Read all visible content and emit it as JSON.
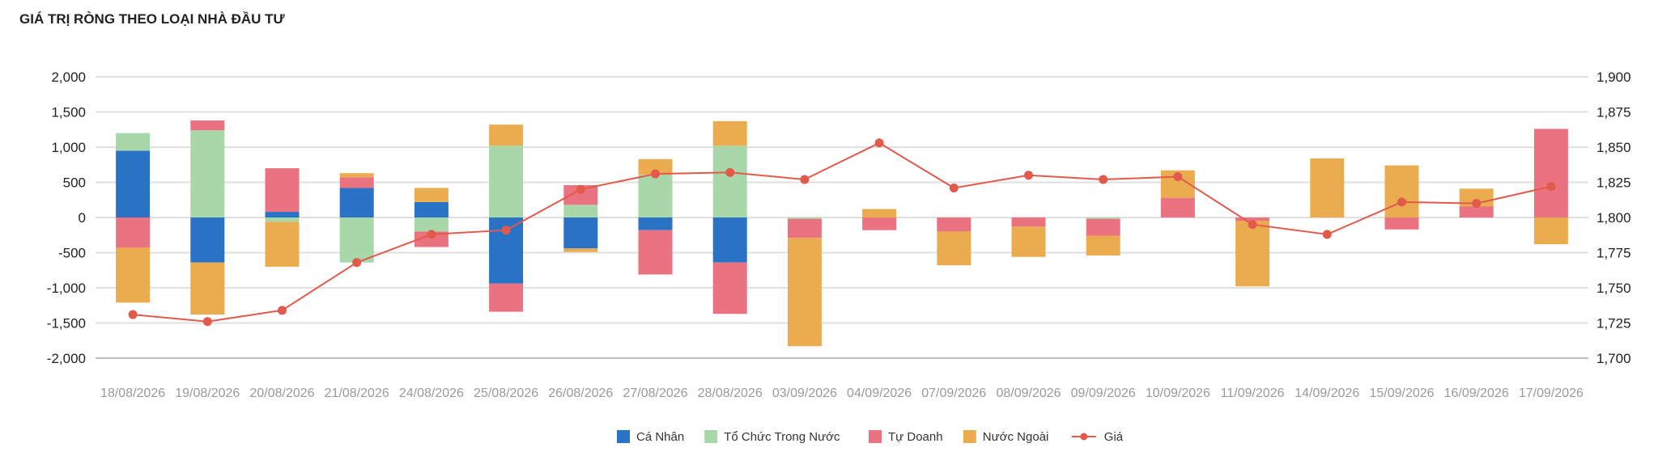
{
  "chart_data": {
    "type": "bar",
    "stacked": true,
    "title": "GIÁ TRỊ RÒNG THEO LOẠI NHÀ ĐẦU TƯ",
    "categories": [
      "18/08/2026",
      "19/08/2026",
      "20/08/2026",
      "21/08/2026",
      "24/08/2026",
      "25/08/2026",
      "26/08/2026",
      "27/08/2026",
      "28/08/2026",
      "03/09/2026",
      "04/09/2026",
      "07/09/2026",
      "08/09/2026",
      "09/09/2026",
      "10/09/2026",
      "11/09/2026",
      "14/09/2026",
      "15/09/2026",
      "16/09/2026",
      "17/09/2026"
    ],
    "series": [
      {
        "name": "Cá Nhân",
        "color": "#2a72c5",
        "axis": "left",
        "values": [
          950,
          -640,
          80,
          420,
          220,
          -940,
          -440,
          -180,
          -640,
          0,
          0,
          0,
          0,
          0,
          0,
          0,
          0,
          0,
          0,
          0
        ]
      },
      {
        "name": "Tổ Chức Trong Nước",
        "color": "#a8d8aa",
        "axis": "left",
        "values": [
          250,
          1240,
          -60,
          -640,
          -200,
          1020,
          180,
          610,
          1020,
          -20,
          0,
          0,
          0,
          -20,
          0,
          0,
          0,
          0,
          0,
          0
        ]
      },
      {
        "name": "Tự Doanh",
        "color": "#eb7281",
        "axis": "left",
        "values": [
          -430,
          140,
          620,
          150,
          -220,
          -400,
          280,
          -630,
          -730,
          -270,
          -180,
          -200,
          -130,
          -240,
          280,
          -50,
          0,
          -170,
          160,
          1260
        ]
      },
      {
        "name": "Nước Ngoài",
        "color": "#ebac50",
        "axis": "left",
        "values": [
          -780,
          -740,
          -640,
          60,
          200,
          300,
          -50,
          220,
          350,
          -1540,
          120,
          -480,
          -430,
          -280,
          390,
          -930,
          840,
          740,
          250,
          -380
        ]
      },
      {
        "name": "Giá",
        "type": "line",
        "color": "#e15a4b",
        "axis": "right",
        "values": [
          1731,
          1726,
          1734,
          1768,
          1788,
          1791,
          1820,
          1831,
          1832,
          1827,
          1853,
          1821,
          1830,
          1827,
          1829,
          1795,
          1788,
          1811,
          1810,
          1822
        ]
      }
    ],
    "y_left": {
      "min": -2000,
      "max": 2000,
      "step": 500,
      "ticks": [
        "2,000",
        "1,500",
        "1,000",
        "500",
        "0",
        "-500",
        "-1,000",
        "-1,500",
        "-2,000"
      ]
    },
    "y_right": {
      "min": 1700,
      "max": 1900,
      "step": 25,
      "ticks": [
        "1,900",
        "1,875",
        "1,850",
        "1,825",
        "1,800",
        "1,775",
        "1,750",
        "1,725",
        "1,700"
      ]
    },
    "grid": true,
    "legend_position": "bottom"
  }
}
